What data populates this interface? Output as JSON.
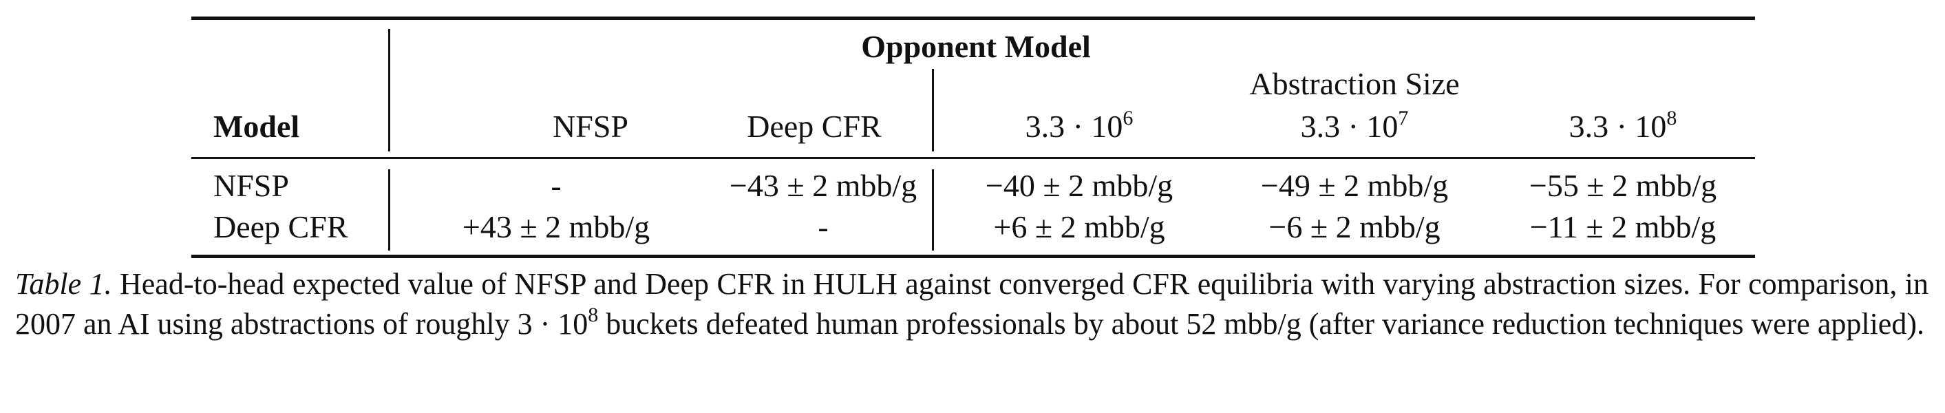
{
  "table": {
    "group_header": "Opponent Model",
    "abstraction_header": "Abstraction Size",
    "model_header": "Model",
    "columns": [
      {
        "label": "NFSP"
      },
      {
        "label": "Deep CFR"
      },
      {
        "base": "3.3 · 10",
        "exp": "6"
      },
      {
        "base": "3.3 · 10",
        "exp": "7"
      },
      {
        "base": "3.3 · 10",
        "exp": "8"
      }
    ],
    "rows": [
      {
        "model": "NFSP",
        "cells": [
          "-",
          "−43 ± 2 mbb/g",
          "−40 ± 2 mbb/g",
          "−49 ± 2 mbb/g",
          "−55 ± 2 mbb/g"
        ]
      },
      {
        "model": "Deep CFR",
        "cells": [
          "+43 ± 2 mbb/g",
          "-",
          "+6 ± 2 mbb/g",
          "−6 ± 2 mbb/g",
          "−11 ± 2 mbb/g"
        ]
      }
    ]
  },
  "caption": {
    "label": "Table 1.",
    "text_part1": " Head-to-head expected value of NFSP and Deep CFR in HULH against converged CFR equilibria with varying abstraction sizes. For comparison, in 2007 an AI using abstractions of roughly ",
    "math_base": "3 · 10",
    "math_exp": "8",
    "text_part2": " buckets defeated human professionals by about ",
    "math_value": "52",
    "text_part3": " mbb/g (after variance reduction techniques were applied)."
  }
}
